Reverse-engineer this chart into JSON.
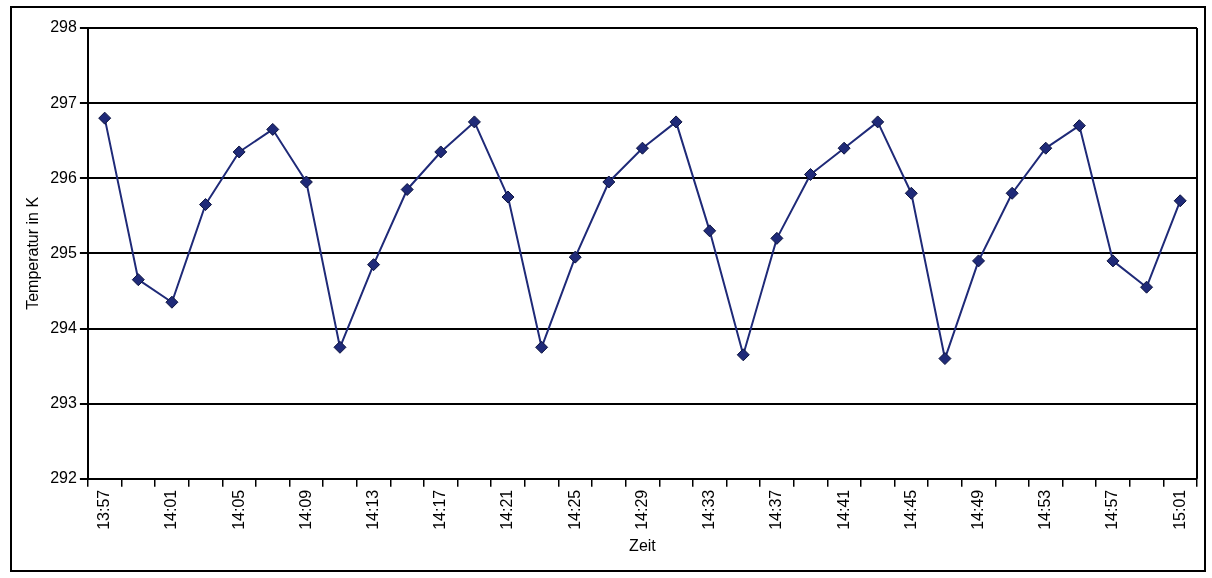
{
  "chart_data": {
    "type": "line",
    "xlabel": "Zeit",
    "ylabel": "Temperatur in K",
    "categories": [
      "13:57",
      null,
      "14:01",
      null,
      "14:05",
      null,
      "14:09",
      null,
      "14:13",
      null,
      "14:17",
      null,
      "14:21",
      null,
      "14:25",
      null,
      "14:29",
      null,
      "14:33",
      null,
      "14:37",
      null,
      "14:41",
      null,
      "14:45",
      null,
      "14:49",
      null,
      "14:53",
      null,
      "14:57",
      null,
      "15:01"
    ],
    "series": [
      {
        "color": "#1f2a78",
        "values": [
          296.8,
          294.65,
          294.35,
          295.65,
          296.35,
          296.65,
          295.95,
          293.75,
          294.85,
          295.85,
          296.35,
          296.75,
          295.75,
          293.75,
          294.95,
          295.95,
          296.4,
          296.75,
          295.3,
          293.65,
          295.2,
          296.05,
          296.4,
          296.75,
          295.8,
          293.6,
          294.9,
          295.8,
          296.4,
          296.7,
          294.9,
          294.55,
          295.7
        ]
      }
    ],
    "ylim": [
      292,
      298
    ],
    "yticks": [
      292,
      293,
      294,
      295,
      296,
      297,
      298
    ],
    "grid": "y",
    "legend": false,
    "marker": "diamond",
    "line_style": "solid"
  }
}
